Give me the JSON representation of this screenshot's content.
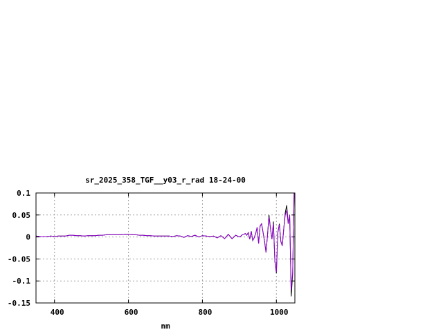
{
  "chart_data": {
    "type": "line",
    "title": "sr_2025_358_TGF__y03_r_rad 18-24-00",
    "xlabel": "nm",
    "ylabel": "",
    "xlim": [
      350,
      1050
    ],
    "ylim": [
      -0.15,
      0.1
    ],
    "grid": true,
    "legend": "none",
    "x_ticks": [
      400,
      600,
      800,
      1000
    ],
    "y_ticks": [
      0.1,
      0.05,
      0,
      -0.05,
      -0.1,
      -0.15
    ],
    "x_tick_labels": [
      "400",
      "600",
      "800",
      "1000"
    ],
    "y_tick_labels": [
      "0.1",
      "0.05",
      "0",
      "-0.05",
      "-0.1",
      "-0.15"
    ],
    "x": [
      350,
      360,
      370,
      380,
      390,
      400,
      410,
      420,
      430,
      440,
      450,
      460,
      470,
      480,
      490,
      500,
      510,
      520,
      530,
      540,
      550,
      560,
      570,
      580,
      590,
      600,
      610,
      620,
      630,
      640,
      650,
      660,
      670,
      680,
      690,
      700,
      710,
      720,
      730,
      740,
      750,
      760,
      770,
      780,
      790,
      800,
      810,
      820,
      830,
      840,
      850,
      860,
      870,
      880,
      890,
      900,
      904,
      908,
      912,
      916,
      920,
      924,
      928,
      932,
      936,
      940,
      944,
      948,
      952,
      956,
      960,
      964,
      968,
      972,
      976,
      980,
      984,
      988,
      992,
      996,
      1000,
      1004,
      1008,
      1012,
      1016,
      1020,
      1024,
      1028,
      1032,
      1036,
      1040,
      1044,
      1048
    ],
    "series": [
      {
        "color": "#000000",
        "values": [
          0.002,
          0.001,
          0.001,
          0.001,
          0.002,
          0.001,
          0.002,
          0.002,
          0.002,
          0.004,
          0.004,
          0.003,
          0.003,
          0.002,
          0.003,
          0.003,
          0.003,
          0.004,
          0.004,
          0.005,
          0.005,
          0.005,
          0.005,
          0.005,
          0.006,
          0.006,
          0.005,
          0.005,
          0.004,
          0.004,
          0.003,
          0.003,
          0.002,
          0.002,
          0.002,
          0.002,
          0.002,
          0.001,
          0.003,
          0.002,
          -0.001,
          0.003,
          0.001,
          0.004,
          0.0,
          0.003,
          0.002,
          0.001,
          0.002,
          -0.002,
          0.003,
          -0.004,
          0.006,
          -0.004,
          0.004,
          0.0,
          0.002,
          0.005,
          0.006,
          0.008,
          0.004,
          0.01,
          -0.005,
          0.013,
          -0.008,
          -0.002,
          0.008,
          0.022,
          -0.015,
          0.025,
          0.03,
          0.01,
          -0.01,
          -0.035,
          0.005,
          0.05,
          0.02,
          -0.005,
          0.035,
          -0.055,
          -0.082,
          0.01,
          0.03,
          -0.01,
          -0.02,
          0.02,
          0.055,
          0.072,
          0.03,
          0.05,
          -0.135,
          -0.085,
          0.1
        ]
      },
      {
        "color": "#9400d3",
        "values": [
          0.002,
          0.001,
          0.001,
          0.001,
          0.002,
          0.001,
          0.002,
          0.002,
          0.002,
          0.004,
          0.004,
          0.003,
          0.003,
          0.002,
          0.003,
          0.003,
          0.003,
          0.004,
          0.004,
          0.005,
          0.005,
          0.005,
          0.005,
          0.005,
          0.006,
          0.006,
          0.005,
          0.005,
          0.004,
          0.004,
          0.003,
          0.003,
          0.002,
          0.002,
          0.002,
          0.002,
          0.002,
          0.001,
          0.003,
          0.002,
          -0.001,
          0.003,
          0.001,
          0.004,
          0.0,
          0.003,
          0.002,
          0.001,
          0.002,
          -0.002,
          0.003,
          -0.004,
          0.006,
          -0.004,
          0.004,
          0.0,
          0.002,
          0.005,
          0.006,
          0.008,
          0.004,
          0.01,
          -0.005,
          0.013,
          -0.008,
          -0.002,
          0.008,
          0.022,
          -0.015,
          0.025,
          0.03,
          0.01,
          -0.01,
          -0.035,
          0.005,
          0.045,
          0.02,
          -0.005,
          0.03,
          -0.055,
          -0.08,
          0.01,
          0.028,
          -0.01,
          -0.02,
          0.02,
          0.05,
          0.06,
          0.03,
          0.05,
          -0.12,
          -0.08,
          0.1
        ]
      }
    ]
  }
}
